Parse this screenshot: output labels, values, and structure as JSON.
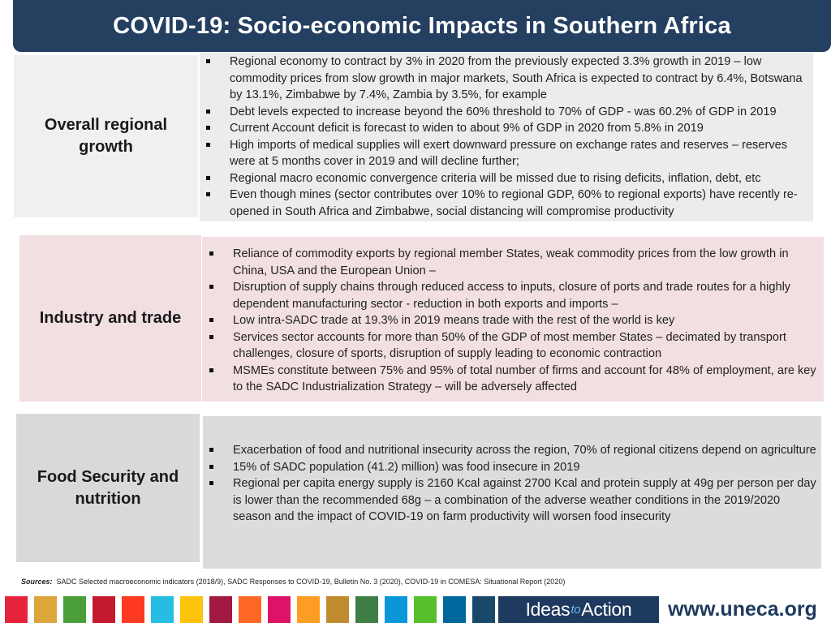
{
  "title": "COVID-19: Socio-economic Impacts in Southern Africa",
  "sections": [
    {
      "label": "Overall regional growth",
      "bullets": [
        "Regional economy to contract by 3% in 2020 from the previously expected 3.3% growth in 2019 – low commodity prices from slow growth in major markets, South Africa is expected to contract by 6.4%, Botswana by 13.1%, Zimbabwe by 7.4%, Zambia by 3.5%, for example",
        "Debt levels expected to increase beyond the 60% threshold to 70% of GDP  - was 60.2% of GDP in 2019",
        "Current Account deficit is forecast to widen to about 9% of GDP in 2020 from 5.8% in 2019",
        "High imports of medical supplies will exert downward pressure on exchange rates and reserves – reserves were at 5 months cover in 2019 and will decline further;",
        "Regional macro economic convergence criteria will be missed due to rising deficits, inflation, debt, etc",
        "Even though mines (sector contributes over 10% to regional GDP, 60% to regional exports) have recently re-opened in South Africa and Zimbabwe, social distancing will compromise productivity"
      ]
    },
    {
      "label": "Industry and trade",
      "bullets": [
        "Reliance of commodity exports by regional member States, weak commodity prices from the low growth in China, USA and the European Union –",
        "Disruption of supply chains through reduced access to inputs, closure of ports and trade routes for a highly dependent manufacturing sector - reduction in both exports and imports –",
        "Low intra-SADC trade at 19.3% in 2019 means trade with the rest of the world is key",
        "Services sector accounts for more than 50% of the GDP of most member States – decimated by transport challenges, closure of sports, disruption of supply leading to economic contraction",
        "MSMEs constitute between 75% and 95% of total number of firms and account for 48% of employment, are key to the SADC Industrialization Strategy – will be adversely affected"
      ]
    },
    {
      "label": "Food Security and nutrition",
      "bullets": [
        "Exacerbation of food and nutritional insecurity across the region, 70% of regional citizens depend on agriculture",
        "15% of SADC population  (41.2) million) was food insecure in 2019",
        "Regional per capita energy supply is 2160 Kcal against 2700 Kcal and protein supply at 49g per person per day is lower than the recommended 68g – a combination of the adverse weather conditions in the 2019/2020 season and the impact of COVID-19 on farm productivity will worsen food insecurity"
      ]
    }
  ],
  "sources": {
    "label": "Sources",
    "text": "SADC Selected macroeconomic indicators (2018/9), SADC Responses to COVID-19, Bulletin No. 3 (2020), COVID-19 in COMESA: Situational Report (2020)"
  },
  "footer": {
    "ideas_pre": "Ideas",
    "ideas_to": "to",
    "ideas_post": "Action",
    "website": "www.uneca.org",
    "sdg_colors": [
      "#e5243b",
      "#dda63a",
      "#4c9f38",
      "#c5192d",
      "#ff3a21",
      "#26bde2",
      "#fcc30b",
      "#a21942",
      "#fd6925",
      "#dd1367",
      "#fd9d24",
      "#bf8b2e",
      "#3f7e44",
      "#0a97d9",
      "#56c02b",
      "#00689d",
      "#19486a"
    ]
  }
}
